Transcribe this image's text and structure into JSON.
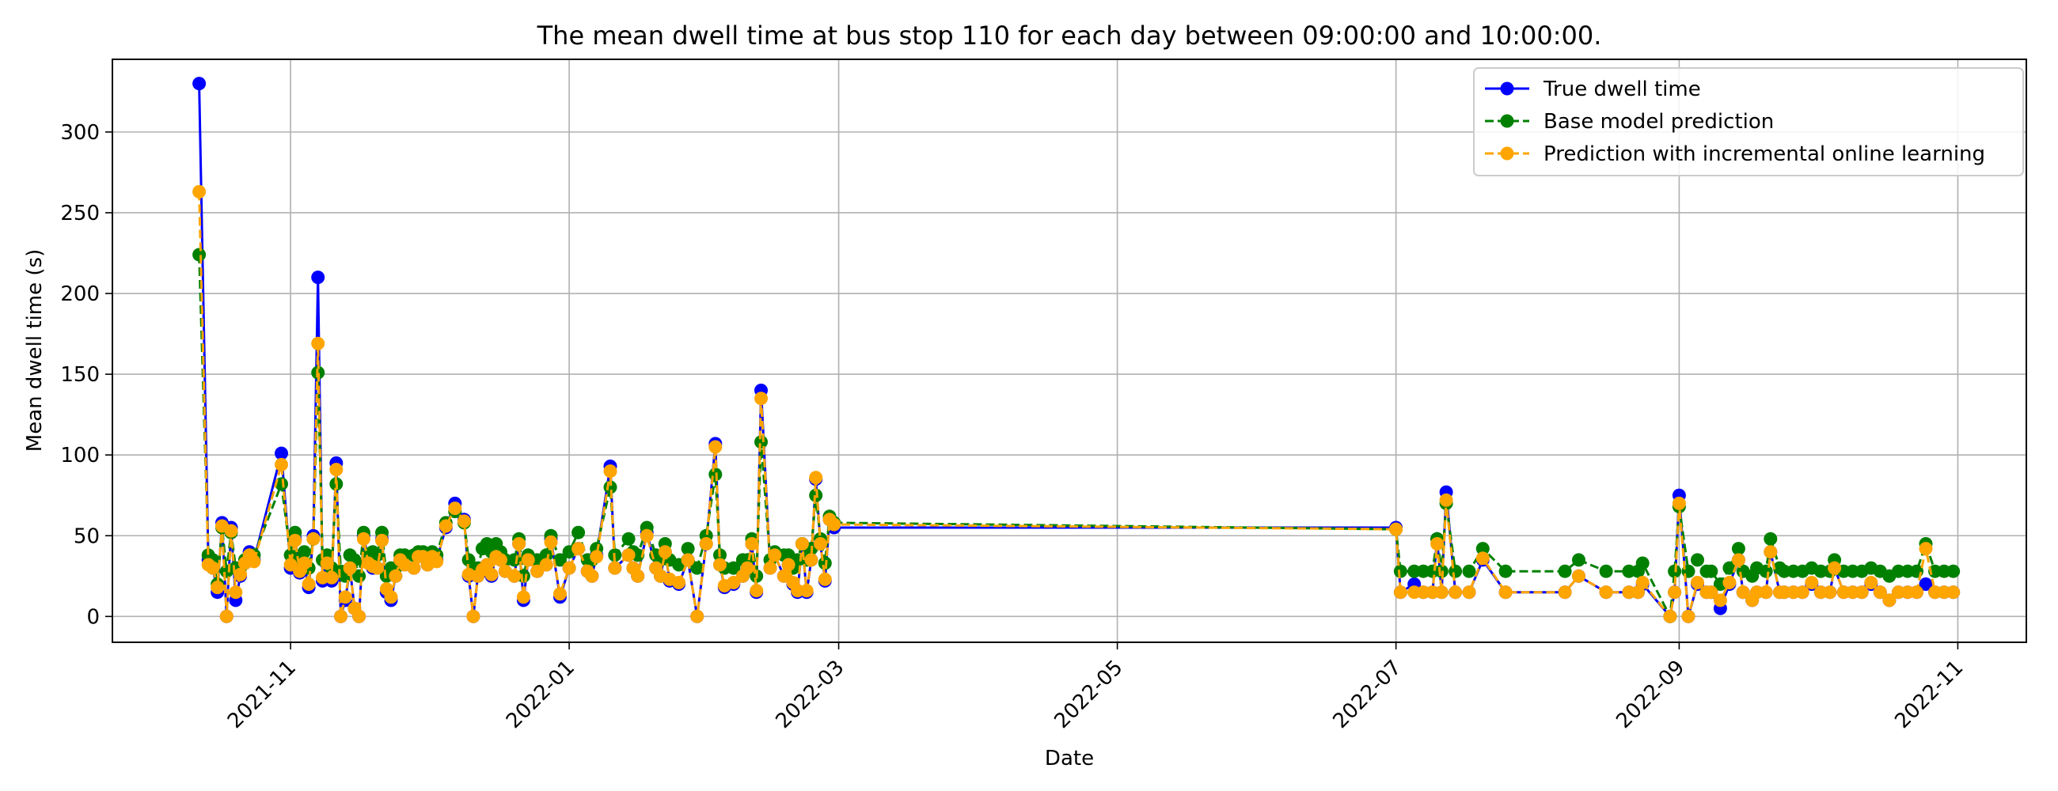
{
  "chart_data": {
    "type": "line",
    "title": "The mean dwell time at bus stop 110 for each day between 09:00:00 and 10:00:00.",
    "xlabel": "Date",
    "ylabel": "Mean dwell time (s)",
    "x_range": [
      "2021-09-23",
      "2022-11-16"
    ],
    "ylim": [
      -16,
      345
    ],
    "x_ticks": [
      "2021-11",
      "2022-01",
      "2022-03",
      "2022-05",
      "2022-07",
      "2022-09",
      "2022-11"
    ],
    "y_ticks": [
      0,
      50,
      100,
      150,
      200,
      250,
      300
    ],
    "grid": true,
    "legend_position": "top-right",
    "colors": {
      "true": "#0000ff",
      "base": "#008000",
      "incremental": "#ffa500"
    },
    "series": [
      {
        "name": "True dwell time",
        "style": "solid",
        "color": "#0000ff",
        "x": [
          "2021-10-12",
          "2021-10-14",
          "2021-10-15",
          "2021-10-16",
          "2021-10-17",
          "2021-10-18",
          "2021-10-19",
          "2021-10-20",
          "2021-10-21",
          "2021-10-22",
          "2021-10-23",
          "2021-10-24",
          "2021-10-30",
          "2021-11-01",
          "2021-11-02",
          "2021-11-03",
          "2021-11-04",
          "2021-11-05",
          "2021-11-06",
          "2021-11-07",
          "2021-11-08",
          "2021-11-09",
          "2021-11-10",
          "2021-11-11",
          "2021-11-12",
          "2021-11-13",
          "2021-11-14",
          "2021-11-15",
          "2021-11-16",
          "2021-11-17",
          "2021-11-18",
          "2021-11-19",
          "2021-11-20",
          "2021-11-21",
          "2021-11-22",
          "2021-11-23",
          "2021-11-24",
          "2021-11-25",
          "2021-11-26",
          "2021-11-28",
          "2021-11-29",
          "2021-11-30",
          "2021-12-01",
          "2021-12-02",
          "2021-12-03",
          "2021-12-05",
          "2021-12-07",
          "2021-12-09",
          "2021-12-10",
          "2021-12-11",
          "2021-12-12",
          "2021-12-13",
          "2021-12-14",
          "2021-12-15",
          "2021-12-16",
          "2021-12-17",
          "2021-12-18",
          "2021-12-20",
          "2021-12-21",
          "2021-12-22",
          "2021-12-23",
          "2021-12-25",
          "2021-12-27",
          "2021-12-28",
          "2021-12-30",
          "2022-01-01",
          "2022-01-03",
          "2022-01-05",
          "2022-01-06",
          "2022-01-07",
          "2022-01-10",
          "2022-01-11",
          "2022-01-14",
          "2022-01-15",
          "2022-01-16",
          "2022-01-18",
          "2022-01-20",
          "2022-01-21",
          "2022-01-22",
          "2022-01-23",
          "2022-01-25",
          "2022-01-27",
          "2022-01-29",
          "2022-01-31",
          "2022-02-02",
          "2022-02-03",
          "2022-02-04",
          "2022-02-06",
          "2022-02-08",
          "2022-02-09",
          "2022-02-10",
          "2022-02-11",
          "2022-02-12",
          "2022-02-14",
          "2022-02-15",
          "2022-02-17",
          "2022-02-18",
          "2022-02-19",
          "2022-02-20",
          "2022-02-21",
          "2022-02-22",
          "2022-02-23",
          "2022-02-24",
          "2022-02-25",
          "2022-02-26",
          "2022-02-27",
          "2022-02-28",
          "2022-07-01",
          "2022-07-02",
          "2022-07-05",
          "2022-07-07",
          "2022-07-09",
          "2022-07-10",
          "2022-07-11",
          "2022-07-12",
          "2022-07-14",
          "2022-07-17",
          "2022-07-20",
          "2022-07-25",
          "2022-08-07",
          "2022-08-10",
          "2022-08-16",
          "2022-08-21",
          "2022-08-23",
          "2022-08-24",
          "2022-08-30",
          "2022-08-31",
          "2022-09-01",
          "2022-09-03",
          "2022-09-05",
          "2022-09-07",
          "2022-09-08",
          "2022-09-10",
          "2022-09-12",
          "2022-09-14",
          "2022-09-15",
          "2022-09-17",
          "2022-09-18",
          "2022-09-20",
          "2022-09-21",
          "2022-09-23",
          "2022-09-24",
          "2022-09-26",
          "2022-09-28",
          "2022-09-30",
          "2022-10-02",
          "2022-10-04",
          "2022-10-05",
          "2022-10-07",
          "2022-10-09",
          "2022-10-11",
          "2022-10-13",
          "2022-10-15",
          "2022-10-17",
          "2022-10-19",
          "2022-10-21",
          "2022-10-23",
          "2022-10-25",
          "2022-10-27",
          "2022-10-29",
          "2022-10-31"
        ],
        "values": [
          330,
          35,
          30,
          15,
          58,
          0,
          55,
          10,
          25,
          33,
          40,
          35,
          101,
          30,
          48,
          27,
          32,
          18,
          50,
          210,
          22,
          32,
          22,
          95,
          0,
          10,
          30,
          5,
          0,
          50,
          35,
          30,
          30,
          48,
          15,
          10,
          25,
          35,
          32,
          30,
          38,
          38,
          32,
          38,
          35,
          55,
          70,
          60,
          25,
          0,
          25,
          28,
          32,
          25,
          38,
          35,
          28,
          25,
          45,
          10,
          35,
          28,
          32,
          48,
          12,
          30,
          42,
          28,
          25,
          38,
          93,
          30,
          38,
          30,
          25,
          52,
          30,
          25,
          40,
          22,
          20,
          35,
          0,
          45,
          107,
          32,
          18,
          20,
          25,
          30,
          45,
          15,
          140,
          30,
          38,
          25,
          32,
          20,
          15,
          45,
          15,
          35,
          85,
          45,
          22,
          60,
          55,
          55,
          15,
          20,
          15,
          15,
          48,
          15,
          77,
          15,
          15,
          35,
          15,
          15,
          25,
          15,
          15,
          15,
          20,
          0,
          15,
          75,
          0,
          20,
          15,
          15,
          5,
          20,
          35,
          15,
          10,
          15,
          15,
          40,
          15,
          15,
          15,
          15,
          20,
          15,
          15,
          30,
          15,
          15,
          15,
          20,
          15,
          10,
          15,
          15,
          15,
          20,
          15,
          15,
          15
        ]
      },
      {
        "name": "Base model prediction",
        "style": "dashed",
        "color": "#008000",
        "x": [
          "2021-10-12",
          "2021-10-14",
          "2021-10-15",
          "2021-10-16",
          "2021-10-17",
          "2021-10-18",
          "2021-10-19",
          "2021-10-20",
          "2021-10-21",
          "2021-10-22",
          "2021-10-23",
          "2021-10-24",
          "2021-10-30",
          "2021-11-01",
          "2021-11-02",
          "2021-11-03",
          "2021-11-04",
          "2021-11-05",
          "2021-11-06",
          "2021-11-07",
          "2021-11-08",
          "2021-11-09",
          "2021-11-10",
          "2021-11-11",
          "2021-11-12",
          "2021-11-13",
          "2021-11-14",
          "2021-11-15",
          "2021-11-16",
          "2021-11-17",
          "2021-11-18",
          "2021-11-19",
          "2021-11-20",
          "2021-11-21",
          "2021-11-22",
          "2021-11-23",
          "2021-11-24",
          "2021-11-25",
          "2021-11-26",
          "2021-11-28",
          "2021-11-29",
          "2021-11-30",
          "2021-12-01",
          "2021-12-02",
          "2021-12-03",
          "2021-12-05",
          "2021-12-07",
          "2021-12-09",
          "2021-12-10",
          "2021-12-11",
          "2021-12-12",
          "2021-12-13",
          "2021-12-14",
          "2021-12-15",
          "2021-12-16",
          "2021-12-17",
          "2021-12-18",
          "2021-12-20",
          "2021-12-21",
          "2021-12-22",
          "2021-12-23",
          "2021-12-25",
          "2021-12-27",
          "2021-12-28",
          "2021-12-30",
          "2022-01-01",
          "2022-01-03",
          "2022-01-05",
          "2022-01-06",
          "2022-01-07",
          "2022-01-10",
          "2022-01-11",
          "2022-01-14",
          "2022-01-15",
          "2022-01-16",
          "2022-01-18",
          "2022-01-20",
          "2022-01-21",
          "2022-01-22",
          "2022-01-23",
          "2022-01-25",
          "2022-01-27",
          "2022-01-29",
          "2022-01-31",
          "2022-02-02",
          "2022-02-03",
          "2022-02-04",
          "2022-02-06",
          "2022-02-08",
          "2022-02-09",
          "2022-02-10",
          "2022-02-11",
          "2022-02-12",
          "2022-02-14",
          "2022-02-15",
          "2022-02-17",
          "2022-02-18",
          "2022-02-19",
          "2022-02-20",
          "2022-02-21",
          "2022-02-22",
          "2022-02-23",
          "2022-02-24",
          "2022-02-25",
          "2022-02-26",
          "2022-02-27",
          "2022-02-28",
          "2022-07-01",
          "2022-07-02",
          "2022-07-05",
          "2022-07-07",
          "2022-07-09",
          "2022-07-10",
          "2022-07-11",
          "2022-07-12",
          "2022-07-14",
          "2022-07-17",
          "2022-07-20",
          "2022-07-25",
          "2022-08-07",
          "2022-08-10",
          "2022-08-16",
          "2022-08-21",
          "2022-08-23",
          "2022-08-24",
          "2022-08-30",
          "2022-08-31",
          "2022-09-01",
          "2022-09-03",
          "2022-09-05",
          "2022-09-07",
          "2022-09-08",
          "2022-09-10",
          "2022-09-12",
          "2022-09-14",
          "2022-09-15",
          "2022-09-17",
          "2022-09-18",
          "2022-09-20",
          "2022-09-21",
          "2022-09-23",
          "2022-09-24",
          "2022-09-26",
          "2022-09-28",
          "2022-09-30",
          "2022-10-02",
          "2022-10-04",
          "2022-10-05",
          "2022-10-07",
          "2022-10-09",
          "2022-10-11",
          "2022-10-13",
          "2022-10-15",
          "2022-10-17",
          "2022-10-19",
          "2022-10-21",
          "2022-10-23",
          "2022-10-25",
          "2022-10-27",
          "2022-10-29",
          "2022-10-31"
        ],
        "values": [
          224,
          38,
          35,
          20,
          55,
          28,
          52,
          30,
          30,
          35,
          38,
          38,
          82,
          38,
          52,
          35,
          40,
          30,
          48,
          151,
          35,
          38,
          30,
          82,
          28,
          25,
          38,
          35,
          25,
          52,
          38,
          40,
          38,
          52,
          25,
          30,
          30,
          38,
          38,
          38,
          40,
          40,
          38,
          40,
          38,
          58,
          65,
          58,
          35,
          30,
          30,
          42,
          45,
          40,
          45,
          40,
          35,
          35,
          48,
          25,
          38,
          35,
          38,
          50,
          35,
          40,
          52,
          35,
          35,
          42,
          80,
          38,
          48,
          40,
          38,
          55,
          38,
          35,
          45,
          35,
          32,
          42,
          30,
          50,
          88,
          38,
          30,
          30,
          35,
          35,
          48,
          25,
          108,
          35,
          40,
          38,
          38,
          30,
          35,
          45,
          35,
          42,
          75,
          48,
          33,
          62,
          58,
          54,
          28,
          28,
          28,
          28,
          48,
          28,
          70,
          28,
          28,
          42,
          28,
          28,
          35,
          28,
          28,
          28,
          33,
          0,
          28,
          68,
          28,
          35,
          28,
          28,
          20,
          30,
          42,
          28,
          25,
          30,
          28,
          48,
          30,
          28,
          28,
          28,
          30,
          28,
          28,
          35,
          28,
          28,
          28,
          30,
          28,
          25,
          28,
          28,
          28,
          45,
          28,
          28,
          28
        ]
      },
      {
        "name": "Prediction with incremental online learning",
        "style": "dashed",
        "color": "#ffa500",
        "x": [
          "2021-10-12",
          "2021-10-14",
          "2021-10-15",
          "2021-10-16",
          "2021-10-17",
          "2021-10-18",
          "2021-10-19",
          "2021-10-20",
          "2021-10-21",
          "2021-10-22",
          "2021-10-23",
          "2021-10-24",
          "2021-10-30",
          "2021-11-01",
          "2021-11-02",
          "2021-11-03",
          "2021-11-04",
          "2021-11-05",
          "2021-11-06",
          "2021-11-07",
          "2021-11-08",
          "2021-11-09",
          "2021-11-10",
          "2021-11-11",
          "2021-11-12",
          "2021-11-13",
          "2021-11-14",
          "2021-11-15",
          "2021-11-16",
          "2021-11-17",
          "2021-11-18",
          "2021-11-19",
          "2021-11-20",
          "2021-11-21",
          "2021-11-22",
          "2021-11-23",
          "2021-11-24",
          "2021-11-25",
          "2021-11-26",
          "2021-11-28",
          "2021-11-29",
          "2021-11-30",
          "2021-12-01",
          "2021-12-02",
          "2021-12-03",
          "2021-12-05",
          "2021-12-07",
          "2021-12-09",
          "2021-12-10",
          "2021-12-11",
          "2021-12-12",
          "2021-12-13",
          "2021-12-14",
          "2021-12-15",
          "2021-12-16",
          "2021-12-17",
          "2021-12-18",
          "2021-12-20",
          "2021-12-21",
          "2021-12-22",
          "2021-12-23",
          "2021-12-25",
          "2021-12-27",
          "2021-12-28",
          "2021-12-30",
          "2022-01-01",
          "2022-01-03",
          "2022-01-05",
          "2022-01-06",
          "2022-01-07",
          "2022-01-10",
          "2022-01-11",
          "2022-01-14",
          "2022-01-15",
          "2022-01-16",
          "2022-01-18",
          "2022-01-20",
          "2022-01-21",
          "2022-01-22",
          "2022-01-23",
          "2022-01-25",
          "2022-01-27",
          "2022-01-29",
          "2022-01-31",
          "2022-02-02",
          "2022-02-03",
          "2022-02-04",
          "2022-02-06",
          "2022-02-08",
          "2022-02-09",
          "2022-02-10",
          "2022-02-11",
          "2022-02-12",
          "2022-02-14",
          "2022-02-15",
          "2022-02-17",
          "2022-02-18",
          "2022-02-19",
          "2022-02-20",
          "2022-02-21",
          "2022-02-22",
          "2022-02-23",
          "2022-02-24",
          "2022-02-25",
          "2022-02-26",
          "2022-02-27",
          "2022-02-28",
          "2022-07-01",
          "2022-07-02",
          "2022-07-05",
          "2022-07-07",
          "2022-07-09",
          "2022-07-10",
          "2022-07-11",
          "2022-07-12",
          "2022-07-14",
          "2022-07-17",
          "2022-07-20",
          "2022-07-25",
          "2022-08-07",
          "2022-08-10",
          "2022-08-16",
          "2022-08-21",
          "2022-08-23",
          "2022-08-24",
          "2022-08-30",
          "2022-08-31",
          "2022-09-01",
          "2022-09-03",
          "2022-09-05",
          "2022-09-07",
          "2022-09-08",
          "2022-09-10",
          "2022-09-12",
          "2022-09-14",
          "2022-09-15",
          "2022-09-17",
          "2022-09-18",
          "2022-09-20",
          "2022-09-21",
          "2022-09-23",
          "2022-09-24",
          "2022-09-26",
          "2022-09-28",
          "2022-09-30",
          "2022-10-02",
          "2022-10-04",
          "2022-10-05",
          "2022-10-07",
          "2022-10-09",
          "2022-10-11",
          "2022-10-13",
          "2022-10-15",
          "2022-10-17",
          "2022-10-19",
          "2022-10-21",
          "2022-10-23",
          "2022-10-25",
          "2022-10-27",
          "2022-10-29",
          "2022-10-31"
        ],
        "values": [
          263,
          32,
          30,
          18,
          56,
          0,
          53,
          15,
          26,
          33,
          38,
          34,
          94,
          32,
          47,
          28,
          33,
          20,
          48,
          169,
          24,
          33,
          24,
          91,
          0,
          12,
          30,
          5,
          0,
          48,
          33,
          31,
          30,
          47,
          17,
          12,
          25,
          35,
          32,
          30,
          37,
          37,
          32,
          37,
          34,
          56,
          67,
          59,
          26,
          0,
          25,
          29,
          32,
          26,
          37,
          35,
          28,
          25,
          45,
          12,
          35,
          28,
          32,
          46,
          14,
          30,
          42,
          28,
          25,
          37,
          90,
          30,
          38,
          30,
          25,
          50,
          30,
          25,
          40,
          23,
          21,
          35,
          0,
          45,
          105,
          32,
          19,
          21,
          25,
          30,
          45,
          16,
          135,
          30,
          38,
          25,
          32,
          21,
          16,
          45,
          16,
          35,
          86,
          45,
          23,
          60,
          57,
          54,
          15,
          15,
          15,
          15,
          45,
          15,
          72,
          15,
          15,
          36,
          15,
          15,
          25,
          15,
          15,
          15,
          21,
          0,
          15,
          70,
          0,
          21,
          15,
          15,
          10,
          21,
          35,
          15,
          10,
          15,
          15,
          40,
          15,
          15,
          15,
          15,
          21,
          15,
          15,
          30,
          15,
          15,
          15,
          21,
          15,
          10,
          15,
          15,
          15,
          42,
          15,
          15,
          15
        ]
      }
    ]
  }
}
